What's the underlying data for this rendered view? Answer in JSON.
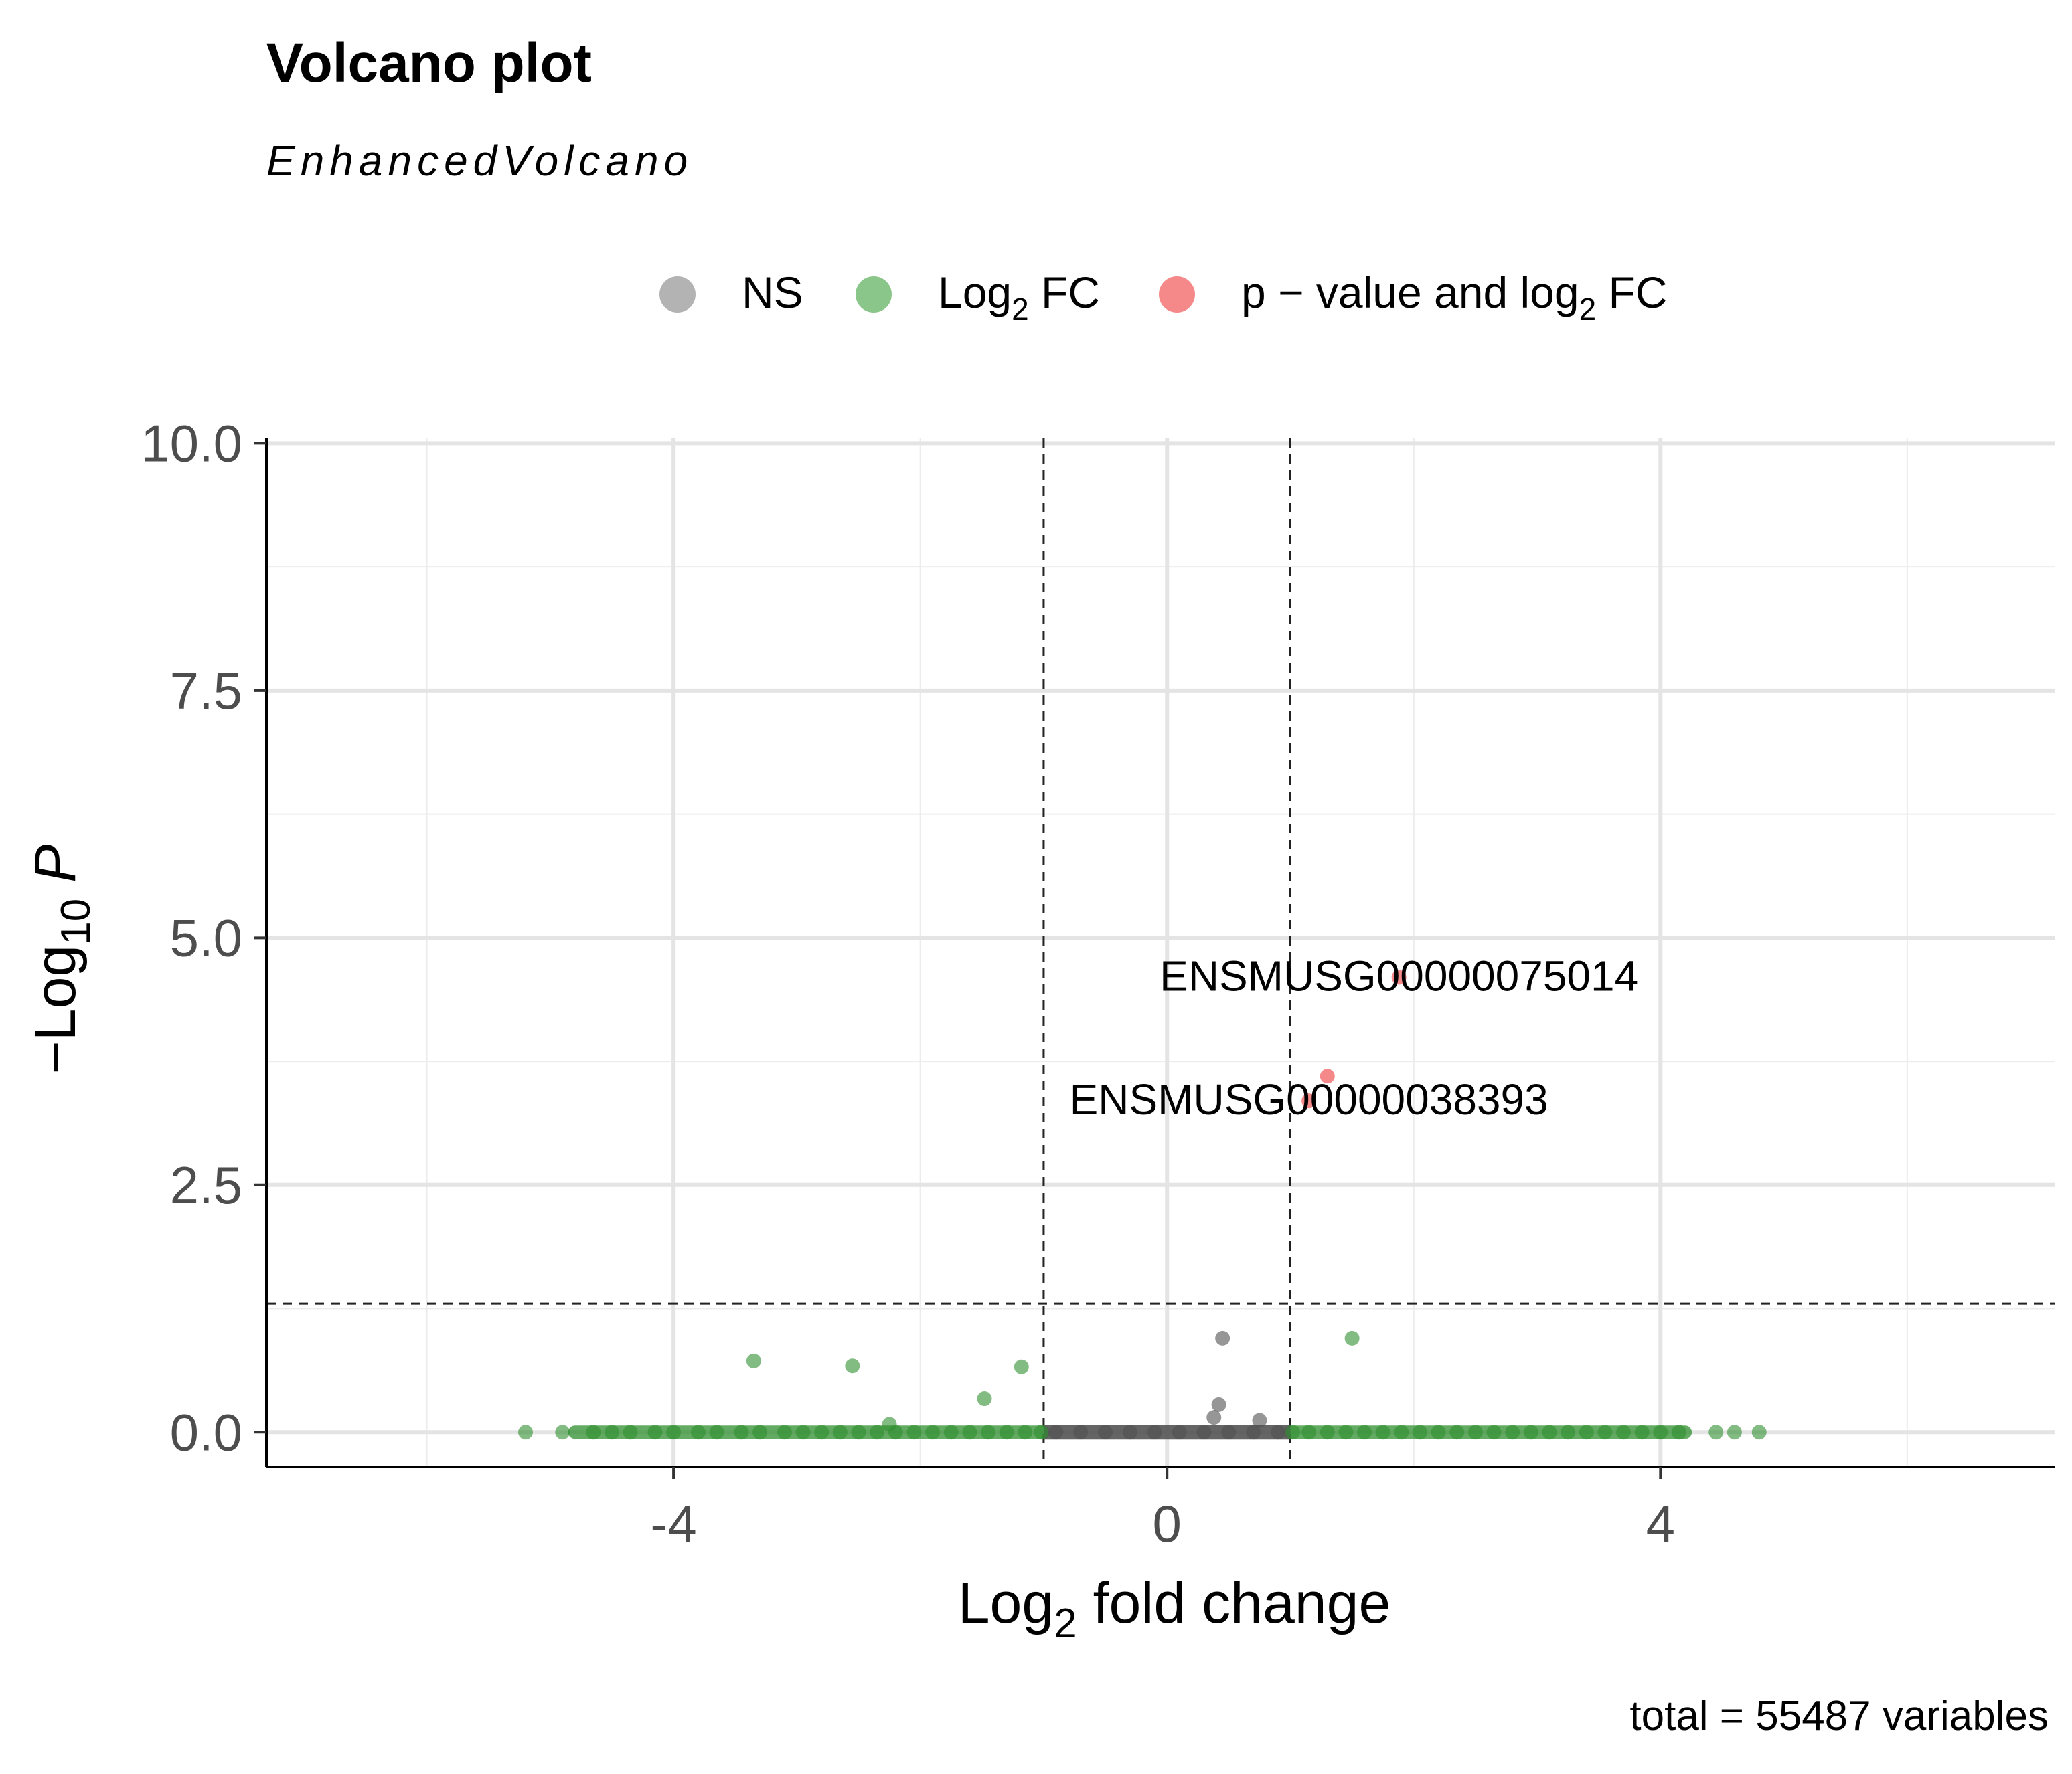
{
  "chart_data": {
    "type": "scatter",
    "title": "Volcano plot",
    "subtitle": "EnhancedVolcano",
    "xlabel": {
      "main": "Log",
      "sub": "2",
      "rest": " fold change"
    },
    "ylabel": {
      "pre": "−Log",
      "sub": "10",
      "post": "P"
    },
    "caption": "total = 55487 variables",
    "xlim": [
      -7.3,
      7.2
    ],
    "ylim": [
      -0.35,
      10.05
    ],
    "x_ticks": [
      -4,
      0,
      4
    ],
    "x_tick_labels": [
      "-4",
      "0",
      "4"
    ],
    "y_ticks": [
      0,
      2.5,
      5,
      7.5,
      10
    ],
    "y_tick_labels": [
      "0.0",
      "2.5",
      "5.0",
      "7.5",
      "10.0"
    ],
    "grid": true,
    "legend_position": "top",
    "thresholds": {
      "log2fc": [
        -1,
        1
      ],
      "neg_log10_p": 1.3
    },
    "legend": [
      {
        "key": "NS",
        "parts": [
          {
            "t": "NS"
          }
        ],
        "color": "#808080"
      },
      {
        "key": "FC",
        "parts": [
          {
            "t": "Log"
          },
          {
            "sub": "2"
          },
          {
            "t": " FC"
          }
        ],
        "color": "#3c9f3c"
      },
      {
        "key": "P_FC",
        "parts": [
          {
            "t": "p − value and log"
          },
          {
            "sub": "2"
          },
          {
            "t": " FC"
          }
        ],
        "color": "#ee3b3b"
      }
    ],
    "series": [
      {
        "name": "NS",
        "color": "#505050",
        "points": [
          [
            0.45,
            0.95
          ],
          [
            0.42,
            0.28
          ],
          [
            0.38,
            0.15
          ],
          [
            0.75,
            0.12
          ],
          [
            -0.9,
            0
          ],
          [
            -0.7,
            0
          ],
          [
            -0.5,
            0
          ],
          [
            -0.3,
            0
          ],
          [
            -0.1,
            0
          ],
          [
            0.1,
            0
          ],
          [
            0.3,
            0
          ],
          [
            0.5,
            0
          ],
          [
            0.7,
            0
          ],
          [
            0.9,
            0
          ]
        ]
      },
      {
        "name": "Log2 FC",
        "color": "#2f8f2f",
        "points": [
          [
            -3.35,
            0.72
          ],
          [
            -2.55,
            0.67
          ],
          [
            -1.18,
            0.66
          ],
          [
            -1.48,
            0.34
          ],
          [
            -2.25,
            0.08
          ],
          [
            1.5,
            0.95
          ],
          [
            -5.2,
            0
          ],
          [
            -4.9,
            0
          ],
          [
            -4.65,
            0
          ],
          [
            -4.5,
            0
          ],
          [
            -4.35,
            0
          ],
          [
            -4.15,
            0
          ],
          [
            -4.0,
            0
          ],
          [
            -3.8,
            0
          ],
          [
            -3.65,
            0
          ],
          [
            -3.45,
            0
          ],
          [
            -3.3,
            0
          ],
          [
            -3.1,
            0
          ],
          [
            -2.95,
            0
          ],
          [
            -2.8,
            0
          ],
          [
            -2.65,
            0
          ],
          [
            -2.5,
            0
          ],
          [
            -2.35,
            0
          ],
          [
            -2.2,
            0
          ],
          [
            -2.05,
            0
          ],
          [
            -1.9,
            0
          ],
          [
            -1.75,
            0
          ],
          [
            -1.6,
            0
          ],
          [
            -1.45,
            0
          ],
          [
            -1.3,
            0
          ],
          [
            -1.15,
            0
          ],
          [
            -1.02,
            0
          ],
          [
            1.02,
            0
          ],
          [
            1.15,
            0
          ],
          [
            1.3,
            0
          ],
          [
            1.45,
            0
          ],
          [
            1.6,
            0
          ],
          [
            1.75,
            0
          ],
          [
            1.9,
            0
          ],
          [
            2.05,
            0
          ],
          [
            2.2,
            0
          ],
          [
            2.35,
            0
          ],
          [
            2.5,
            0
          ],
          [
            2.65,
            0
          ],
          [
            2.8,
            0
          ],
          [
            2.95,
            0
          ],
          [
            3.1,
            0
          ],
          [
            3.25,
            0
          ],
          [
            3.4,
            0
          ],
          [
            3.55,
            0
          ],
          [
            3.7,
            0
          ],
          [
            3.85,
            0
          ],
          [
            4.0,
            0
          ],
          [
            4.15,
            0
          ],
          [
            4.45,
            0
          ],
          [
            4.6,
            0
          ],
          [
            4.8,
            0
          ]
        ]
      },
      {
        "name": "p - value and log2 FC",
        "color": "#ee3b3b",
        "points": [
          [
            1.88,
            4.6,
            "ENSMUSG00000075014"
          ],
          [
            1.3,
            3.6,
            ""
          ],
          [
            1.15,
            3.35,
            "ENSMUSG00000038393"
          ]
        ]
      }
    ],
    "point_labels": [
      {
        "text": "ENSMUSG00000075014",
        "x": 1.88,
        "y": 4.6
      },
      {
        "text": "ENSMUSG00000038393",
        "x": 1.15,
        "y": 3.35
      }
    ]
  }
}
